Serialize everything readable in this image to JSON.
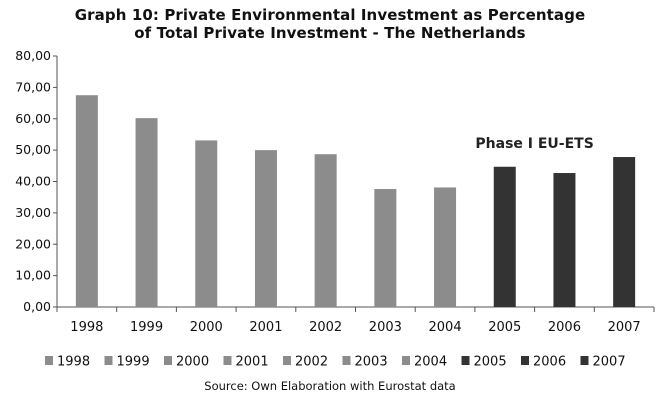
{
  "chart_data": {
    "type": "bar",
    "title": "Graph 10: Private Environmental Investment as Percentage",
    "subtitle": "of Total Private Investment - The Netherlands",
    "categories": [
      "1998",
      "1999",
      "2000",
      "2001",
      "2002",
      "2003",
      "2004",
      "2005",
      "2006",
      "2007"
    ],
    "values": [
      67.5,
      60.2,
      53.1,
      50.0,
      48.7,
      37.6,
      38.1,
      44.7,
      42.7,
      47.8
    ],
    "ylim": [
      0,
      80
    ],
    "yticks": [
      "0,00",
      "10,00",
      "20,00",
      "30,00",
      "40,00",
      "50,00",
      "60,00",
      "70,00",
      "80,00"
    ],
    "ytick_values": [
      0,
      10,
      20,
      30,
      40,
      50,
      60,
      70,
      80
    ],
    "xlabel": "",
    "ylabel": "",
    "grid": false,
    "legend_position": "bottom",
    "legend": [
      "1998",
      "1999",
      "2000",
      "2001",
      "2002",
      "2003",
      "2004",
      "2005",
      "2006",
      "2007"
    ],
    "annotation": "Phase I EU-ETS",
    "source": "Source: Own Elaboration with Eurostat data",
    "colors": {
      "pre_ets": "#8c8c8c",
      "ets": "#333333",
      "axis": "#555555"
    },
    "ets_from_index": 7
  }
}
